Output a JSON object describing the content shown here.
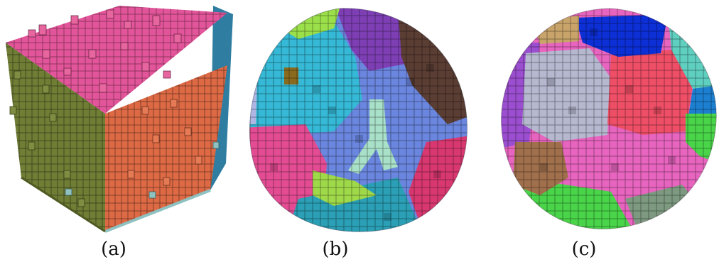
{
  "captions": {
    "a": "(a)",
    "b": "(b)",
    "c": "(c)"
  },
  "panels": [
    {
      "id": "a",
      "shape": "voxel-cube",
      "colors": {
        "top": "#e3559a",
        "right": "#dd6a45",
        "left": "#6f7d35",
        "back": "#2f7ea1",
        "edge": "#8fc1c1"
      }
    },
    {
      "id": "b",
      "shape": "voxel-sphere",
      "regions": [
        "#35b9d6",
        "#6a86de",
        "#7e3fb5",
        "#5a3d33",
        "#e34c93",
        "#2b9fb5",
        "#9be04a",
        "#a8e0c8",
        "#d8386f",
        "#b0b6e4",
        "#8a6b1e"
      ]
    },
    {
      "id": "c",
      "shape": "voxel-sphere",
      "regions": [
        "#b5b8cf",
        "#ee4f66",
        "#0d2fd6",
        "#9b4fd0",
        "#e764bf",
        "#a06f4c",
        "#49d449",
        "#5fcfc0",
        "#1c7fd0",
        "#c9a46a",
        "#7d9a80"
      ]
    }
  ]
}
